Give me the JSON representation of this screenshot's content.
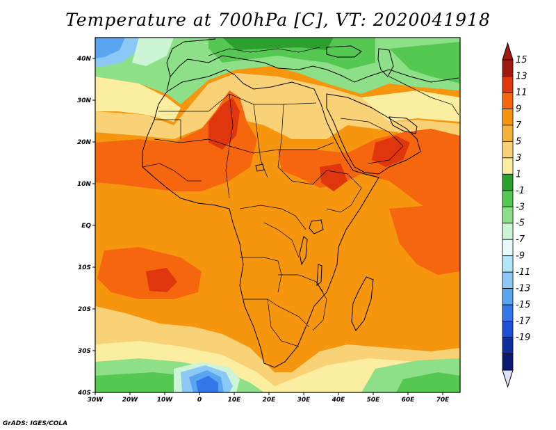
{
  "title": "Temperature at 700hPa [C], VT: 2020041918",
  "credit": "GrADS: IGES/COLA",
  "map": {
    "lon_range": [
      -30,
      75
    ],
    "lat_range": [
      -40,
      45
    ],
    "lon_ticks": [
      {
        "value": -30,
        "label": "30W"
      },
      {
        "value": -20,
        "label": "20W"
      },
      {
        "value": -10,
        "label": "10W"
      },
      {
        "value": 0,
        "label": "0"
      },
      {
        "value": 10,
        "label": "10E"
      },
      {
        "value": 20,
        "label": "20E"
      },
      {
        "value": 30,
        "label": "30E"
      },
      {
        "value": 40,
        "label": "40E"
      },
      {
        "value": 50,
        "label": "50E"
      },
      {
        "value": 60,
        "label": "60E"
      },
      {
        "value": 70,
        "label": "70E"
      }
    ],
    "lat_ticks": [
      {
        "value": 40,
        "label": "40N"
      },
      {
        "value": 30,
        "label": "30N"
      },
      {
        "value": 20,
        "label": "20N"
      },
      {
        "value": 10,
        "label": "10N"
      },
      {
        "value": 0,
        "label": "EQ"
      },
      {
        "value": -10,
        "label": "10S"
      },
      {
        "value": -20,
        "label": "20S"
      },
      {
        "value": -30,
        "label": "30S"
      },
      {
        "value": -40,
        "label": "40S"
      }
    ]
  },
  "colorbar": {
    "labels": [
      "15",
      "13",
      "11",
      "9",
      "7",
      "5",
      "3",
      "1",
      "-1",
      "-3",
      "-5",
      "-7",
      "-9",
      "-11",
      "-13",
      "-15",
      "-17",
      "-19"
    ],
    "colors": [
      "#a01a10",
      "#e0360e",
      "#f5660f",
      "#f5960e",
      "#f5b23a",
      "#f9d278",
      "#fbeea0",
      "#2ca02c",
      "#55c852",
      "#8ee088",
      "#ccf5d6",
      "#e8fbfb",
      "#b4e6fa",
      "#8cc8f5",
      "#5aa5ef",
      "#3278e8",
      "#1e4fd8",
      "#0f2f9e",
      "#0a1a70"
    ],
    "under_color": "#e0e0fa"
  }
}
